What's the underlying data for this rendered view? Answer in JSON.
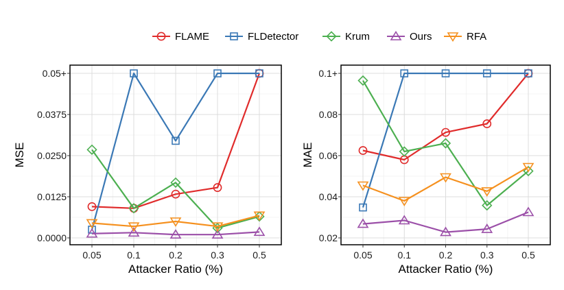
{
  "legend": {
    "placement": "top-center",
    "entries": [
      {
        "name": "FLAME",
        "color": "#e02b2b",
        "marker": "circle"
      },
      {
        "name": "FLDetector",
        "color": "#3a78b5",
        "marker": "square"
      },
      {
        "name": "Krum",
        "color": "#4caf50",
        "marker": "diamond"
      },
      {
        "name": "Ours",
        "color": "#9b4fa8",
        "marker": "triangle-up"
      },
      {
        "name": "RFA",
        "color": "#f5901e",
        "marker": "triangle-down"
      }
    ]
  },
  "chart_data": [
    {
      "type": "line",
      "xlabel": "Attacker Ratio (%)",
      "ylabel": "MSE",
      "categories": [
        "0.05",
        "0.1",
        "0.2",
        "0.3",
        "0.5"
      ],
      "ylim": [
        0,
        0.05
      ],
      "yticks": [
        0,
        0.0125,
        0.025,
        0.0375,
        0.05
      ],
      "ytick_labels": [
        "0.0000",
        "0.0125",
        "0.0250",
        "0.0375",
        "0.05+"
      ],
      "grid": true,
      "series": [
        {
          "name": "FLAME",
          "values": [
            0.0095,
            0.009,
            0.0133,
            0.0153,
            0.05
          ]
        },
        {
          "name": "FLDetector",
          "values": [
            0.0025,
            0.05,
            0.0295,
            0.05,
            0.05
          ]
        },
        {
          "name": "Krum",
          "values": [
            0.0268,
            0.009,
            0.0168,
            0.003,
            0.0065
          ]
        },
        {
          "name": "Ours",
          "values": [
            0.0013,
            0.0016,
            0.001,
            0.001,
            0.0018
          ]
        },
        {
          "name": "RFA",
          "values": [
            0.0045,
            0.0035,
            0.005,
            0.0035,
            0.0068
          ]
        }
      ]
    },
    {
      "type": "line",
      "xlabel": "Attacker Ratio (%)",
      "ylabel": "MAE",
      "categories": [
        "0.05",
        "0.1",
        "0.2",
        "0.3",
        "0.5"
      ],
      "ylim": [
        0.02,
        0.1
      ],
      "yticks": [
        0.02,
        0.04,
        0.06,
        0.08,
        0.1
      ],
      "ytick_labels": [
        "0.02",
        "0.04",
        "0.06",
        "0.08",
        "0.1+"
      ],
      "grid": true,
      "series": [
        {
          "name": "FLAME",
          "values": [
            0.0625,
            0.058,
            0.0713,
            0.0755,
            0.1
          ]
        },
        {
          "name": "FLDetector",
          "values": [
            0.0348,
            0.1,
            0.1,
            0.1,
            0.1
          ]
        },
        {
          "name": "Krum",
          "values": [
            0.0965,
            0.062,
            0.066,
            0.0358,
            0.0525
          ]
        },
        {
          "name": "Ours",
          "values": [
            0.0268,
            0.0285,
            0.0228,
            0.0243,
            0.0325
          ]
        },
        {
          "name": "RFA",
          "values": [
            0.0455,
            0.038,
            0.0495,
            0.0427,
            0.0545
          ]
        }
      ]
    }
  ]
}
